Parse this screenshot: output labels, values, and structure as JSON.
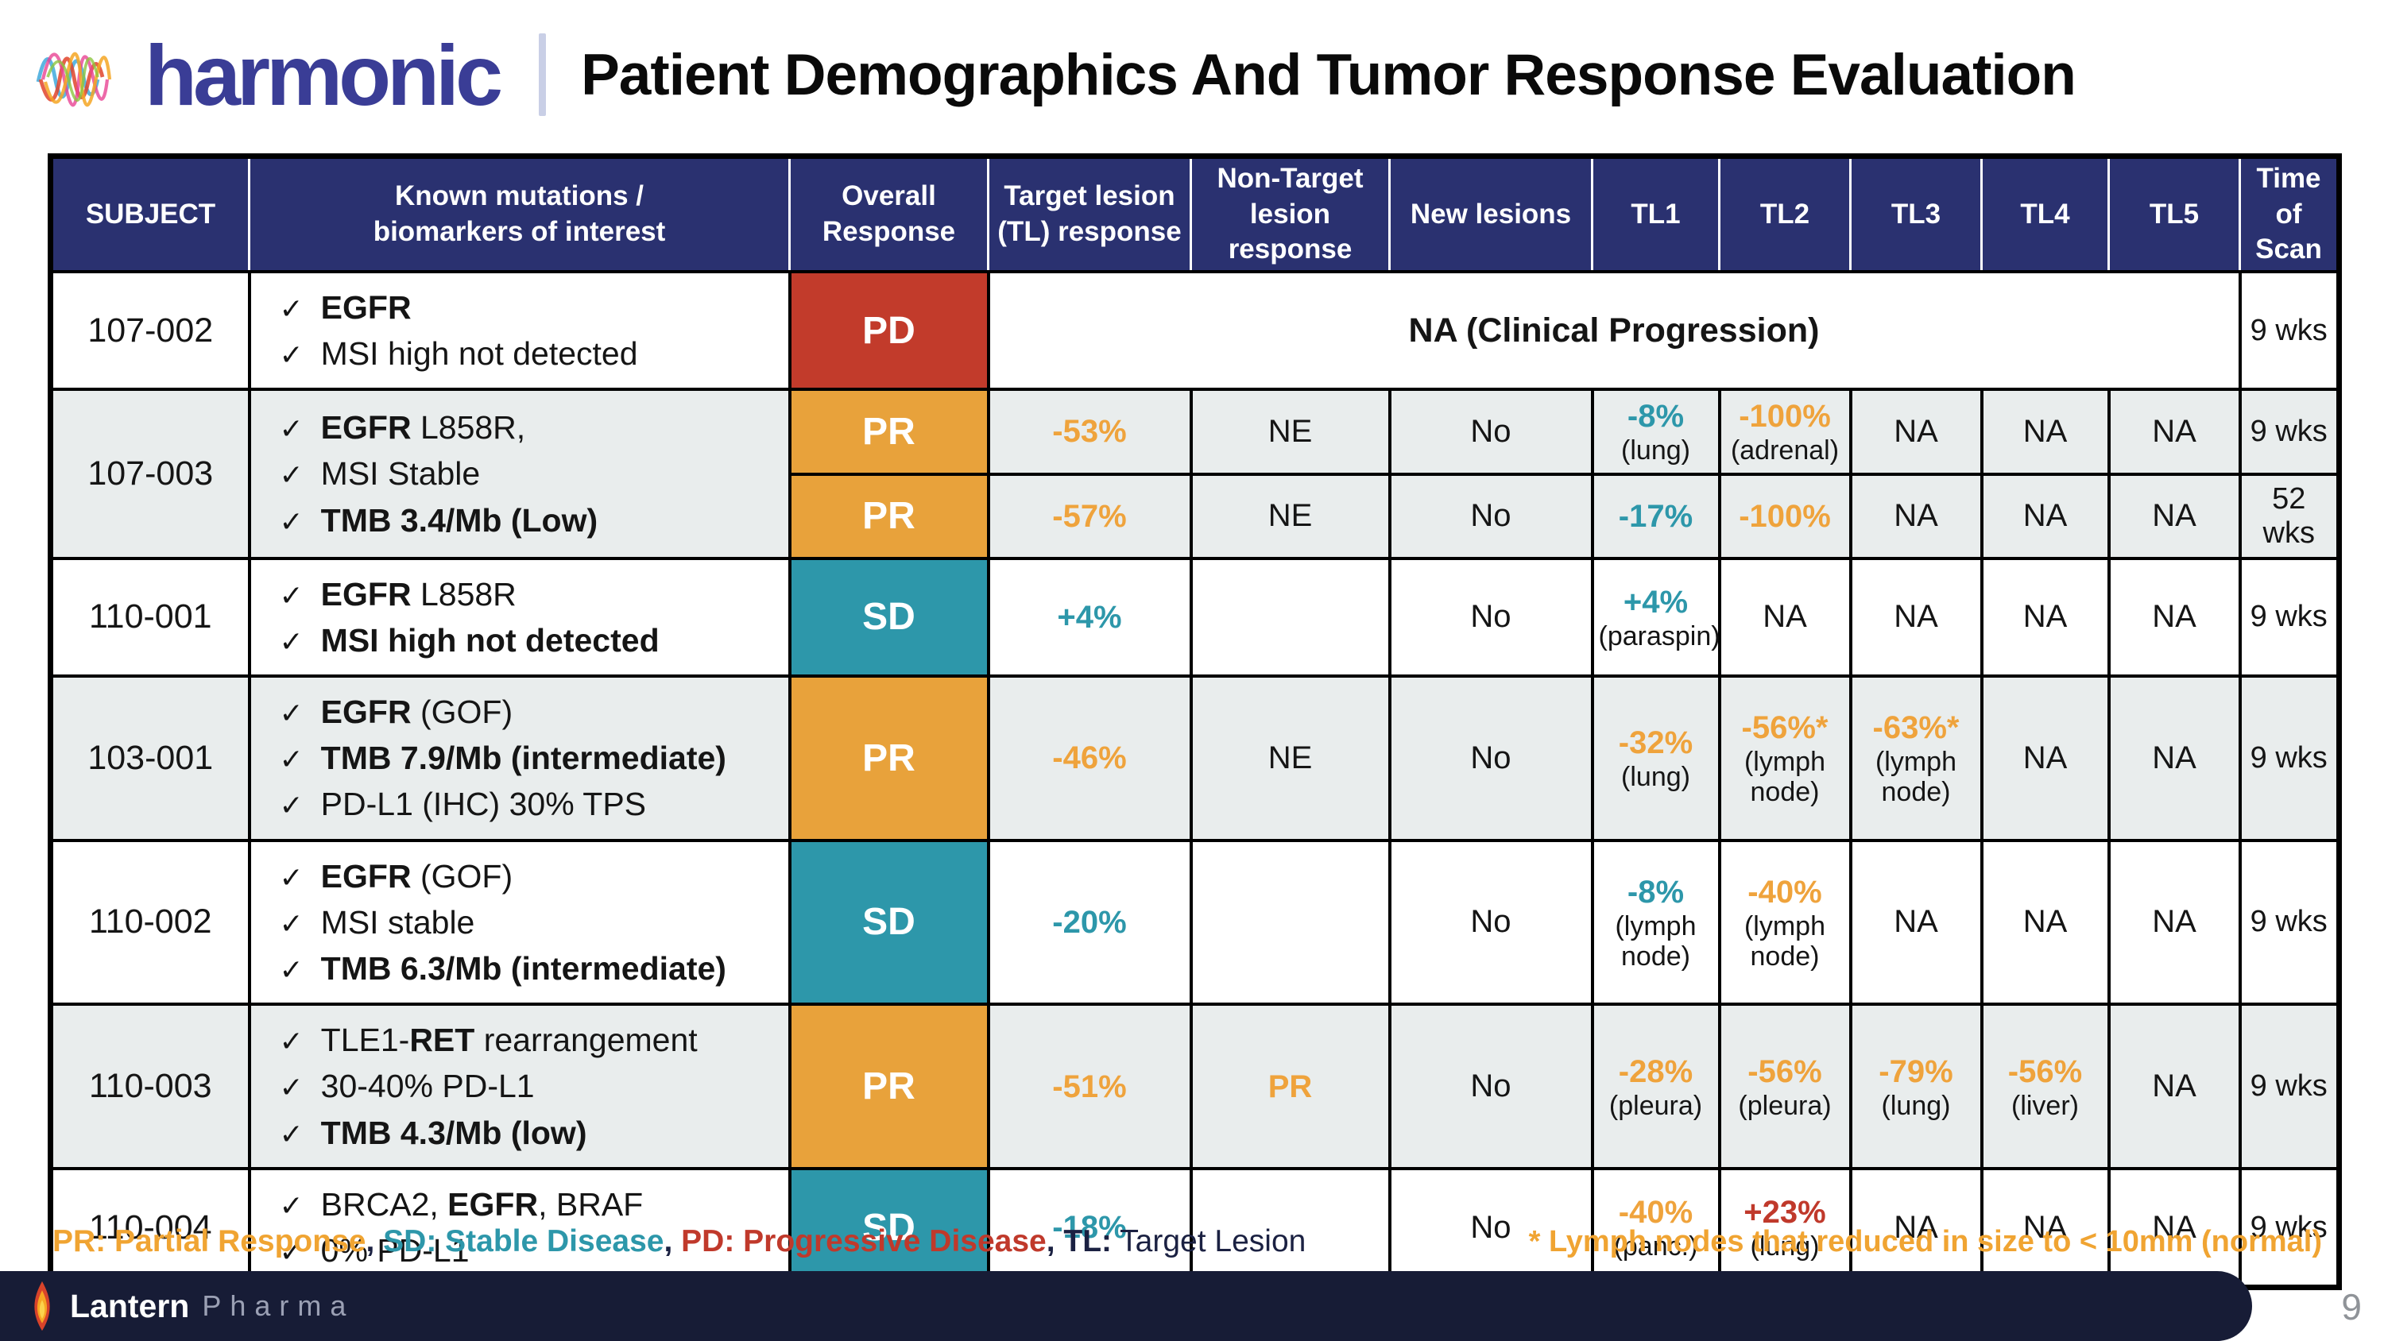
{
  "header": {
    "logo_text": "harmonic",
    "title": "Patient Demographics And Tumor Response Evaluation"
  },
  "colors": {
    "header_navy": "#2A3170",
    "pd_red": "#C23B2B",
    "pr_orange": "#E8A23B",
    "sd_teal": "#2D97AA",
    "value_orange": "#EFA33C",
    "value_teal": "#2D97AA",
    "value_red": "#C0392B",
    "row_shade": "#E9EDED",
    "footer_bar_navy": "#171C36",
    "logo_indigo": "#3A3D96"
  },
  "table": {
    "check_glyph": "✓",
    "columns": [
      "SUBJECT",
      "Known mutations /\nbiomarkers of interest",
      "Overall\nResponse",
      "Target lesion\n(TL) response",
      "Non-Target\nlesion response",
      "New lesions",
      "TL1",
      "TL2",
      "TL3",
      "TL4",
      "TL5",
      "Time of\nScan"
    ],
    "rows": [
      {
        "subject": "107-002",
        "shade": false,
        "biomarkers": [
          [
            {
              "t": "EGFR",
              "b": 1
            }
          ],
          [
            {
              "t": "MSI high not detected"
            }
          ]
        ],
        "subrows": [
          {
            "overall": {
              "label": "PD",
              "color": "red"
            },
            "merged": "NA (Clinical Progression)",
            "time": "9 wks"
          }
        ]
      },
      {
        "subject": "107-003",
        "shade": true,
        "biomarkers": [
          [
            {
              "t": "EGFR",
              "b": 1
            },
            {
              "t": " L858R,"
            }
          ],
          [
            {
              "t": "MSI Stable"
            }
          ],
          [
            {
              "t": "TMB 3.4/Mb (Low)",
              "b": 1
            }
          ]
        ],
        "subrows": [
          {
            "overall": {
              "label": "PR",
              "color": "orange"
            },
            "cells": {
              "target": {
                "v": "-53%",
                "c": "orange"
              },
              "nontarget": {
                "v": "NE"
              },
              "newles": {
                "v": "No"
              },
              "tl1": {
                "v": "-8%",
                "c": "teal",
                "s": "(lung)"
              },
              "tl2": {
                "v": "-100%",
                "c": "orange",
                "s": "(adrenal)"
              },
              "tl3": {
                "v": "NA"
              },
              "tl4": {
                "v": "NA"
              },
              "tl5": {
                "v": "NA"
              }
            },
            "time": "9 wks"
          },
          {
            "overall": {
              "label": "PR",
              "color": "orange"
            },
            "cells": {
              "target": {
                "v": "-57%",
                "c": "orange"
              },
              "nontarget": {
                "v": "NE"
              },
              "newles": {
                "v": "No"
              },
              "tl1": {
                "v": "-17%",
                "c": "teal"
              },
              "tl2": {
                "v": "-100%",
                "c": "orange"
              },
              "tl3": {
                "v": "NA"
              },
              "tl4": {
                "v": "NA"
              },
              "tl5": {
                "v": "NA"
              }
            },
            "time": "52 wks"
          }
        ]
      },
      {
        "subject": "110-001",
        "shade": false,
        "biomarkers": [
          [
            {
              "t": "EGFR",
              "b": 1
            },
            {
              "t": " L858R"
            }
          ],
          [
            {
              "t": "MSI high not detected",
              "b": 1
            }
          ]
        ],
        "subrows": [
          {
            "overall": {
              "label": "SD",
              "color": "teal"
            },
            "cells": {
              "target": {
                "v": "+4%",
                "c": "teal"
              },
              "nontarget": {
                "v": ""
              },
              "newles": {
                "v": "No"
              },
              "tl1": {
                "v": "+4%",
                "c": "teal",
                "s": "(paraspin)"
              },
              "tl2": {
                "v": "NA"
              },
              "tl3": {
                "v": "NA"
              },
              "tl4": {
                "v": "NA"
              },
              "tl5": {
                "v": "NA"
              }
            },
            "time": "9 wks"
          }
        ]
      },
      {
        "subject": "103-001",
        "shade": true,
        "biomarkers": [
          [
            {
              "t": "EGFR",
              "b": 1
            },
            {
              "t": " (GOF)"
            }
          ],
          [
            {
              "t": "TMB 7.9/Mb (intermediate)",
              "b": 1
            }
          ],
          [
            {
              "t": "PD-L1 (IHC) 30% TPS"
            }
          ]
        ],
        "subrows": [
          {
            "overall": {
              "label": "PR",
              "color": "orange"
            },
            "cells": {
              "target": {
                "v": "-46%",
                "c": "orange"
              },
              "nontarget": {
                "v": "NE"
              },
              "newles": {
                "v": "No"
              },
              "tl1": {
                "v": "-32%",
                "c": "orange",
                "s": "(lung)"
              },
              "tl2": {
                "v": "-56%*",
                "c": "orange",
                "s": "(lymph node)"
              },
              "tl3": {
                "v": "-63%*",
                "c": "orange",
                "s": "(lymph node)"
              },
              "tl4": {
                "v": "NA"
              },
              "tl5": {
                "v": "NA"
              }
            },
            "time": "9 wks"
          }
        ]
      },
      {
        "subject": "110-002",
        "shade": false,
        "biomarkers": [
          [
            {
              "t": "EGFR",
              "b": 1
            },
            {
              "t": " (GOF)"
            }
          ],
          [
            {
              "t": "MSI stable"
            }
          ],
          [
            {
              "t": "TMB 6.3/Mb (intermediate)",
              "b": 1
            }
          ]
        ],
        "subrows": [
          {
            "overall": {
              "label": "SD",
              "color": "teal"
            },
            "cells": {
              "target": {
                "v": "-20%",
                "c": "teal"
              },
              "nontarget": {
                "v": ""
              },
              "newles": {
                "v": "No"
              },
              "tl1": {
                "v": "-8%",
                "c": "teal",
                "s": "(lymph node)"
              },
              "tl2": {
                "v": "-40%",
                "c": "orange",
                "s": "(lymph node)"
              },
              "tl3": {
                "v": "NA"
              },
              "tl4": {
                "v": "NA"
              },
              "tl5": {
                "v": "NA"
              }
            },
            "time": "9 wks"
          }
        ]
      },
      {
        "subject": "110-003",
        "shade": true,
        "biomarkers": [
          [
            {
              "t": "TLE1-"
            },
            {
              "t": "RET",
              "b": 1
            },
            {
              "t": " rearrangement"
            }
          ],
          [
            {
              "t": "30-40% PD-L1"
            }
          ],
          [
            {
              "t": "TMB 4.3/Mb (low)",
              "b": 1
            }
          ]
        ],
        "subrows": [
          {
            "overall": {
              "label": "PR",
              "color": "orange"
            },
            "cells": {
              "target": {
                "v": "-51%",
                "c": "orange"
              },
              "nontarget": {
                "v": "PR",
                "c": "orange"
              },
              "newles": {
                "v": "No"
              },
              "tl1": {
                "v": "-28%",
                "c": "orange",
                "s": "(pleura)"
              },
              "tl2": {
                "v": "-56%",
                "c": "orange",
                "s": "(pleura)"
              },
              "tl3": {
                "v": "-79%",
                "c": "orange",
                "s": "(lung)"
              },
              "tl4": {
                "v": "-56%",
                "c": "orange",
                "s": "(liver)"
              },
              "tl5": {
                "v": "NA"
              }
            },
            "time": "9 wks"
          }
        ]
      },
      {
        "subject": "110-004",
        "shade": false,
        "biomarkers": [
          [
            {
              "t": "BRCA2, "
            },
            {
              "t": "EGFR",
              "b": 1
            },
            {
              "t": ", BRAF"
            }
          ],
          [
            {
              "t": "0% PD-L1"
            }
          ]
        ],
        "subrows": [
          {
            "overall": {
              "label": "SD",
              "color": "teal"
            },
            "cells": {
              "target": {
                "v": "-18%",
                "c": "teal"
              },
              "nontarget": {
                "v": ""
              },
              "newles": {
                "v": "No"
              },
              "tl1": {
                "v": "-40%",
                "c": "orange",
                "s": "(panc.)"
              },
              "tl2": {
                "v": "+23%",
                "c": "red",
                "s": "(lung)"
              },
              "tl3": {
                "v": "NA"
              },
              "tl4": {
                "v": "NA"
              },
              "tl5": {
                "v": "NA"
              }
            },
            "time": "9 wks"
          }
        ]
      }
    ]
  },
  "footer": {
    "legend": [
      {
        "text": "PR: Partial Response",
        "color": "orange",
        "bold": true
      },
      {
        "text": ", ",
        "color": "dark",
        "bold": true
      },
      {
        "text": "SD: Stable Disease",
        "color": "teal",
        "bold": true
      },
      {
        "text": ", ",
        "color": "dark",
        "bold": true
      },
      {
        "text": "PD: Progressive Disease",
        "color": "red",
        "bold": true
      },
      {
        "text": ", ",
        "color": "dark",
        "bold": true
      },
      {
        "text": "TL:",
        "color": "dark",
        "bold": true
      },
      {
        "text": " Target Lesion",
        "color": "dark",
        "bold": false
      }
    ],
    "note": "* Lymph nodes that reduced in size to < 10mm (normal)",
    "brand_primary": "Lantern",
    "brand_secondary": "Pharma",
    "page_number": "9"
  }
}
